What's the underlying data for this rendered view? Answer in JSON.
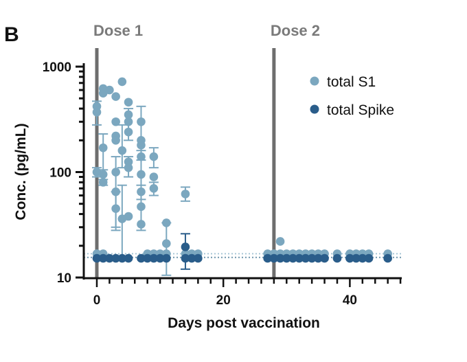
{
  "panel_label": "B",
  "chart_data": {
    "type": "scatter",
    "xlabel": "Days post vaccination",
    "ylabel": "Conc. (pg/mL)",
    "xlim": [
      -2,
      48
    ],
    "ylim": [
      10,
      1000
    ],
    "yscale": "log",
    "x_ticks": [
      0,
      20,
      40
    ],
    "y_ticks": [
      10,
      100,
      1000
    ],
    "dose_lines": [
      {
        "label": "Dose 1",
        "x": 0
      },
      {
        "label": "Dose 2",
        "x": 28
      }
    ],
    "lloq_lines": [
      15.5,
      16.8
    ],
    "legend_position": "top-right",
    "colors": {
      "total_S1": "#7ba7bf",
      "total_Spike": "#2a5d8a",
      "dose_line": "#6e6e6e"
    },
    "series": [
      {
        "name": "total S1",
        "points": [
          {
            "x": 0,
            "y": 420
          },
          {
            "x": 0,
            "y": 370
          },
          {
            "x": 0,
            "y": 100
          },
          {
            "x": 1,
            "y": 620
          },
          {
            "x": 1,
            "y": 560
          },
          {
            "x": 1,
            "y": 170
          },
          {
            "x": 1,
            "y": 95
          },
          {
            "x": 1,
            "y": 80
          },
          {
            "x": 2,
            "y": 600
          },
          {
            "x": 3,
            "y": 520
          },
          {
            "x": 3,
            "y": 300
          },
          {
            "x": 3,
            "y": 220
          },
          {
            "x": 3,
            "y": 200
          },
          {
            "x": 3,
            "y": 100
          },
          {
            "x": 3,
            "y": 65
          },
          {
            "x": 3,
            "y": 45
          },
          {
            "x": 4,
            "y": 720
          },
          {
            "x": 4,
            "y": 160
          },
          {
            "x": 4,
            "y": 36
          },
          {
            "x": 5,
            "y": 460
          },
          {
            "x": 5,
            "y": 350
          },
          {
            "x": 5,
            "y": 300
          },
          {
            "x": 5,
            "y": 240
          },
          {
            "x": 5,
            "y": 125
          },
          {
            "x": 5,
            "y": 110
          },
          {
            "x": 5,
            "y": 38
          },
          {
            "x": 7,
            "y": 300
          },
          {
            "x": 7,
            "y": 200
          },
          {
            "x": 7,
            "y": 180
          },
          {
            "x": 7,
            "y": 140
          },
          {
            "x": 7,
            "y": 95
          },
          {
            "x": 7,
            "y": 65
          },
          {
            "x": 7,
            "y": 47
          },
          {
            "x": 7,
            "y": 32
          },
          {
            "x": 9,
            "y": 140
          },
          {
            "x": 9,
            "y": 90
          },
          {
            "x": 9,
            "y": 70
          },
          {
            "x": 11,
            "y": 33
          },
          {
            "x": 11,
            "y": 21
          },
          {
            "x": 14,
            "y": 62
          },
          {
            "x": 29,
            "y": 22
          },
          {
            "x": 0,
            "y": 16.8
          },
          {
            "x": 1,
            "y": 16.8
          },
          {
            "x": 8,
            "y": 16.8
          },
          {
            "x": 9,
            "y": 16.8
          },
          {
            "x": 10,
            "y": 16.8
          },
          {
            "x": 11,
            "y": 16.8
          },
          {
            "x": 14,
            "y": 16.8
          },
          {
            "x": 15,
            "y": 16.8
          },
          {
            "x": 16,
            "y": 16.8
          },
          {
            "x": 27,
            "y": 16.8
          },
          {
            "x": 28,
            "y": 16.8
          },
          {
            "x": 29,
            "y": 16.8
          },
          {
            "x": 30,
            "y": 16.8
          },
          {
            "x": 31,
            "y": 16.8
          },
          {
            "x": 32,
            "y": 16.8
          },
          {
            "x": 33,
            "y": 16.8
          },
          {
            "x": 34,
            "y": 16.8
          },
          {
            "x": 35,
            "y": 16.8
          },
          {
            "x": 36,
            "y": 16.8
          },
          {
            "x": 38,
            "y": 16.8
          },
          {
            "x": 40,
            "y": 16.8
          },
          {
            "x": 41,
            "y": 16.8
          },
          {
            "x": 42,
            "y": 16.8
          },
          {
            "x": 43,
            "y": 16.8
          },
          {
            "x": 46,
            "y": 16.8
          }
        ],
        "error_bars": [
          {
            "x": 0,
            "low": 280,
            "high": 470
          },
          {
            "x": 0,
            "low": 90,
            "high": 110
          },
          {
            "x": 1,
            "low": 75,
            "high": 230
          },
          {
            "x": 1,
            "low": 85,
            "high": 105
          },
          {
            "x": 3,
            "low": 28,
            "high": 140
          },
          {
            "x": 3,
            "low": 30,
            "high": 65
          },
          {
            "x": 4,
            "low": 110,
            "high": 280
          },
          {
            "x": 4,
            "low": 15.5,
            "high": 75
          },
          {
            "x": 5,
            "low": 200,
            "high": 400
          },
          {
            "x": 5,
            "low": 90,
            "high": 140
          },
          {
            "x": 7,
            "low": 130,
            "high": 420
          },
          {
            "x": 7,
            "low": 28,
            "high": 160
          },
          {
            "x": 7,
            "low": 55,
            "high": 75
          },
          {
            "x": 9,
            "low": 110,
            "high": 170
          },
          {
            "x": 9,
            "low": 60,
            "high": 80
          },
          {
            "x": 11,
            "low": 10.5,
            "high": 33
          },
          {
            "x": 14,
            "low": 53,
            "high": 72
          }
        ]
      },
      {
        "name": "total Spike",
        "points": [
          {
            "x": 0,
            "y": 15.2
          },
          {
            "x": 1,
            "y": 15.2
          },
          {
            "x": 2,
            "y": 15.2
          },
          {
            "x": 3,
            "y": 15.2
          },
          {
            "x": 4,
            "y": 15.2
          },
          {
            "x": 5,
            "y": 15.2
          },
          {
            "x": 7,
            "y": 15.2
          },
          {
            "x": 8,
            "y": 15.2
          },
          {
            "x": 9,
            "y": 15.2
          },
          {
            "x": 10,
            "y": 15.2
          },
          {
            "x": 11,
            "y": 15.2
          },
          {
            "x": 14,
            "y": 15.2
          },
          {
            "x": 14,
            "y": 19.5
          },
          {
            "x": 15,
            "y": 15.2
          },
          {
            "x": 16,
            "y": 15.2
          },
          {
            "x": 27,
            "y": 15.2
          },
          {
            "x": 28,
            "y": 15.2
          },
          {
            "x": 29,
            "y": 15.2
          },
          {
            "x": 30,
            "y": 15.2
          },
          {
            "x": 31,
            "y": 15.2
          },
          {
            "x": 32,
            "y": 15.2
          },
          {
            "x": 33,
            "y": 15.2
          },
          {
            "x": 34,
            "y": 15.2
          },
          {
            "x": 35,
            "y": 15.2
          },
          {
            "x": 36,
            "y": 15.2
          },
          {
            "x": 38,
            "y": 15.2
          },
          {
            "x": 40,
            "y": 15.2
          },
          {
            "x": 41,
            "y": 15.2
          },
          {
            "x": 42,
            "y": 15.2
          },
          {
            "x": 43,
            "y": 15.2
          },
          {
            "x": 46,
            "y": 15.2
          }
        ],
        "error_bars": [
          {
            "x": 14,
            "low": 12,
            "high": 26
          }
        ]
      }
    ]
  }
}
